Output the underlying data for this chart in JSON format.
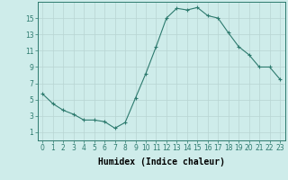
{
  "x": [
    0,
    1,
    2,
    3,
    4,
    5,
    6,
    7,
    8,
    9,
    10,
    11,
    12,
    13,
    14,
    15,
    16,
    17,
    18,
    19,
    20,
    21,
    22,
    23
  ],
  "y": [
    5.7,
    4.5,
    3.7,
    3.2,
    2.5,
    2.5,
    2.3,
    1.5,
    2.2,
    5.2,
    8.2,
    11.5,
    15.0,
    16.2,
    16.0,
    16.3,
    15.3,
    15.0,
    13.2,
    11.5,
    10.5,
    9.0,
    9.0,
    7.5
  ],
  "line_color": "#2d7a6e",
  "marker": "+",
  "marker_size": 3,
  "xlabel": "Humidex (Indice chaleur)",
  "xlabel_fontsize": 7,
  "xlim": [
    -0.5,
    23.5
  ],
  "ylim": [
    0,
    17
  ],
  "yticks": [
    1,
    3,
    5,
    7,
    9,
    11,
    13,
    15
  ],
  "xticks": [
    0,
    1,
    2,
    3,
    4,
    5,
    6,
    7,
    8,
    9,
    10,
    11,
    12,
    13,
    14,
    15,
    16,
    17,
    18,
    19,
    20,
    21,
    22,
    23
  ],
  "bg_color": "#ceecea",
  "grid_color": "#b8d4d2",
  "tick_fontsize": 5.5,
  "linewidth": 0.8,
  "markeredgewidth": 0.8
}
